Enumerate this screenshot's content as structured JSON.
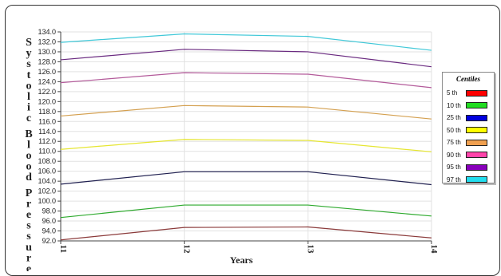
{
  "chart_data": {
    "type": "line",
    "title": "",
    "ylabel": "Systolic Blood Pressure",
    "xlabel": "Years",
    "categories": [
      "11",
      "12",
      "13",
      "14"
    ],
    "ylim": [
      92.0,
      134.0
    ],
    "yticks": [
      "92.0",
      "94.0",
      "96.0",
      "98.0",
      "100.0",
      "102.0",
      "104.0",
      "106.0",
      "108.0",
      "110.0",
      "112.0",
      "114.0",
      "116.0",
      "118.0",
      "120.0",
      "122.0",
      "124.0",
      "126.0",
      "128.0",
      "130.0",
      "132.0",
      "134.0"
    ],
    "grid": true,
    "legend": {
      "title": "Centiles",
      "position": "right"
    },
    "series": [
      {
        "name": "5 th",
        "legend_color": "#ff0000",
        "line_color": "#8b3a3a",
        "values": [
          92.2,
          94.7,
          94.8,
          92.6
        ]
      },
      {
        "name": "10 th",
        "legend_color": "#22dd22",
        "line_color": "#2eaa2e",
        "values": [
          96.7,
          99.2,
          99.2,
          97.0
        ]
      },
      {
        "name": "25 th",
        "legend_color": "#0000dd",
        "line_color": "#202050",
        "values": [
          103.4,
          105.9,
          105.9,
          103.3
        ]
      },
      {
        "name": "50 th",
        "legend_color": "#ffff00",
        "line_color": "#e6e632",
        "values": [
          110.4,
          112.4,
          112.2,
          109.9
        ]
      },
      {
        "name": "75 th",
        "legend_color": "#f0a050",
        "line_color": "#d4a050",
        "values": [
          117.1,
          119.2,
          118.9,
          116.5
        ]
      },
      {
        "name": "90 th",
        "legend_color": "#ff44aa",
        "line_color": "#b35a9a",
        "values": [
          123.8,
          125.8,
          125.5,
          122.8
        ]
      },
      {
        "name": "95 th",
        "legend_color": "#8800bb",
        "line_color": "#6a2a80",
        "values": [
          128.4,
          130.5,
          130.0,
          127.0
        ]
      },
      {
        "name": "97 th",
        "legend_color": "#22ddee",
        "line_color": "#40c8d8",
        "values": [
          131.9,
          133.6,
          133.1,
          130.3
        ]
      }
    ]
  }
}
